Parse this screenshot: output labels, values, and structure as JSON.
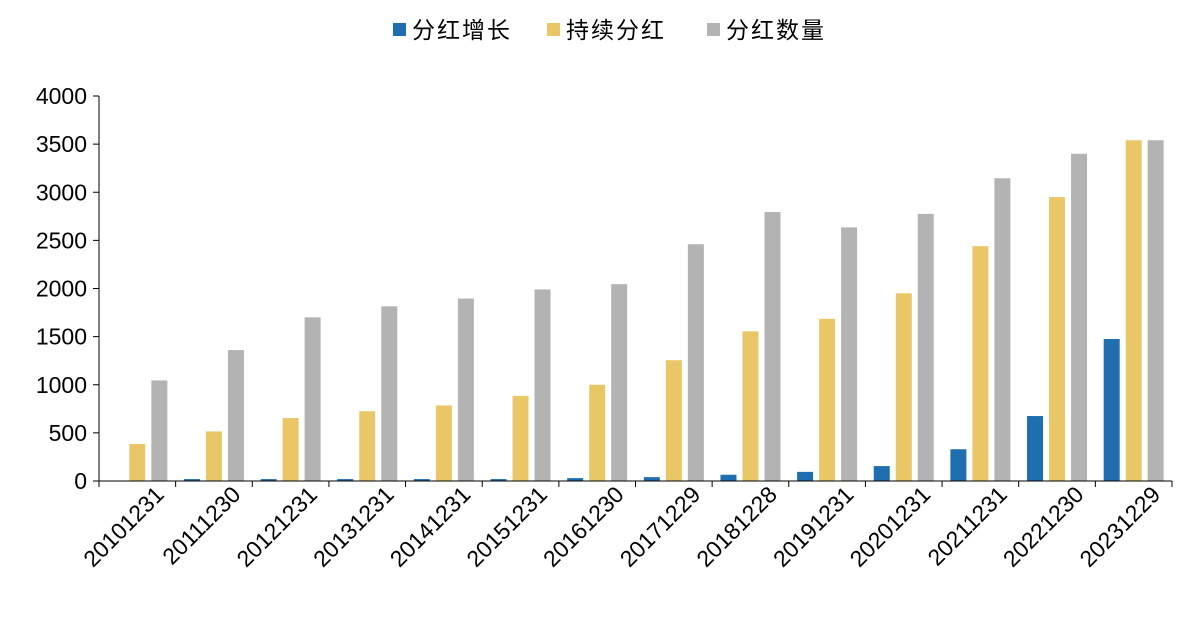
{
  "chart_data": {
    "type": "bar",
    "categories": [
      "20101231",
      "20111230",
      "20121231",
      "20131231",
      "20141231",
      "20151231",
      "20161230",
      "20171229",
      "20181228",
      "20191231",
      "20201231",
      "20211231",
      "20221230",
      "20231229"
    ],
    "series": [
      {
        "name": "分红增长",
        "color": "#1f6eb0",
        "values": [
          0,
          20,
          20,
          20,
          20,
          20,
          30,
          40,
          65,
          95,
          155,
          330,
          675,
          1475
        ]
      },
      {
        "name": "持续分红",
        "color": "#e9c767",
        "values": [
          385,
          515,
          655,
          725,
          785,
          885,
          1000,
          1255,
          1555,
          1685,
          1950,
          2440,
          2950,
          3540
        ]
      },
      {
        "name": "分红数量",
        "color": "#b3b3b3",
        "values": [
          1045,
          1360,
          1700,
          1815,
          1895,
          1990,
          2045,
          2460,
          2795,
          2635,
          2775,
          3145,
          3400,
          3540
        ]
      }
    ],
    "yticks": [
      "0",
      "500",
      "1000",
      "1500",
      "2000",
      "2500",
      "3000",
      "3500",
      "4000"
    ],
    "ylim": [
      0,
      4000
    ],
    "legend_position": "top-center",
    "grid": false
  }
}
